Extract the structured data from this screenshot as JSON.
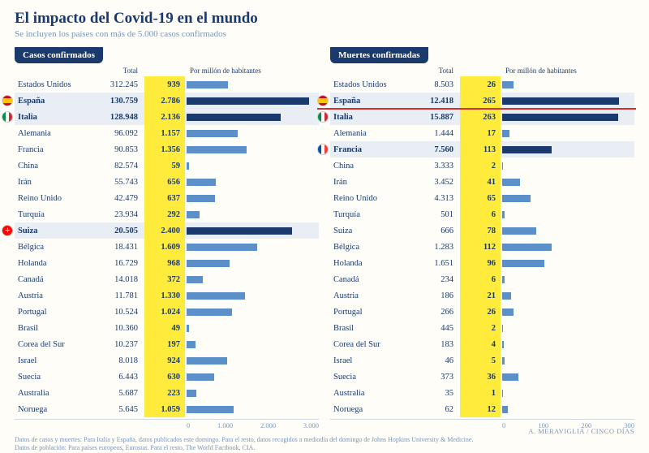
{
  "title": "El impacto del Covid-19 en el mundo",
  "subtitle": "Se incluyen los países con más de 5.000 casos confirmados",
  "col_total": "Total",
  "col_permil": "Por millón de habitantes",
  "panels": [
    {
      "header": "Casos confirmados",
      "max_bar": 3000,
      "axis_ticks": [
        "0",
        "1.000",
        "2.000",
        "3.000"
      ],
      "redline_after": null,
      "rows": [
        {
          "country": "Estados Unidos",
          "total": "312.245",
          "permil": "939",
          "v": 939,
          "hl": false,
          "flag": null
        },
        {
          "country": "España",
          "total": "130.759",
          "permil": "2.786",
          "v": 2786,
          "hl": true,
          "flag": "es"
        },
        {
          "country": "Italia",
          "total": "128.948",
          "permil": "2.136",
          "v": 2136,
          "hl": true,
          "flag": "it"
        },
        {
          "country": "Alemania",
          "total": "96.092",
          "permil": "1.157",
          "v": 1157,
          "hl": false,
          "flag": null
        },
        {
          "country": "Francia",
          "total": "90.853",
          "permil": "1.356",
          "v": 1356,
          "hl": false,
          "flag": null
        },
        {
          "country": "China",
          "total": "82.574",
          "permil": "59",
          "v": 59,
          "hl": false,
          "flag": null
        },
        {
          "country": "Irán",
          "total": "55.743",
          "permil": "656",
          "v": 656,
          "hl": false,
          "flag": null
        },
        {
          "country": "Reino Unido",
          "total": "42.479",
          "permil": "637",
          "v": 637,
          "hl": false,
          "flag": null
        },
        {
          "country": "Turquía",
          "total": "23.934",
          "permil": "292",
          "v": 292,
          "hl": false,
          "flag": null
        },
        {
          "country": "Suiza",
          "total": "20.505",
          "permil": "2.400",
          "v": 2400,
          "hl": true,
          "flag": "ch"
        },
        {
          "country": "Bélgica",
          "total": "18.431",
          "permil": "1.609",
          "v": 1609,
          "hl": false,
          "flag": null
        },
        {
          "country": "Holanda",
          "total": "16.729",
          "permil": "968",
          "v": 968,
          "hl": false,
          "flag": null
        },
        {
          "country": "Canadá",
          "total": "14.018",
          "permil": "372",
          "v": 372,
          "hl": false,
          "flag": null
        },
        {
          "country": "Austria",
          "total": "11.781",
          "permil": "1.330",
          "v": 1330,
          "hl": false,
          "flag": null
        },
        {
          "country": "Portugal",
          "total": "10.524",
          "permil": "1.024",
          "v": 1024,
          "hl": false,
          "flag": null
        },
        {
          "country": "Brasil",
          "total": "10.360",
          "permil": "49",
          "v": 49,
          "hl": false,
          "flag": null
        },
        {
          "country": "Corea del Sur",
          "total": "10.237",
          "permil": "197",
          "v": 197,
          "hl": false,
          "flag": null
        },
        {
          "country": "Israel",
          "total": "8.018",
          "permil": "924",
          "v": 924,
          "hl": false,
          "flag": null
        },
        {
          "country": "Suecia",
          "total": "6.443",
          "permil": "630",
          "v": 630,
          "hl": false,
          "flag": null
        },
        {
          "country": "Australia",
          "total": "5.687",
          "permil": "223",
          "v": 223,
          "hl": false,
          "flag": null
        },
        {
          "country": "Noruega",
          "total": "5.645",
          "permil": "1.059",
          "v": 1059,
          "hl": false,
          "flag": null
        }
      ]
    },
    {
      "header": "Muertes confirmadas",
      "max_bar": 300,
      "axis_ticks": [
        "0",
        "100",
        "200",
        "300"
      ],
      "redline_after": 1,
      "rows": [
        {
          "country": "Estados Unidos",
          "total": "8.503",
          "permil": "26",
          "v": 26,
          "hl": false,
          "flag": null
        },
        {
          "country": "España",
          "total": "12.418",
          "permil": "265",
          "v": 265,
          "hl": true,
          "flag": "es"
        },
        {
          "country": "Italia",
          "total": "15.887",
          "permil": "263",
          "v": 263,
          "hl": true,
          "flag": "it"
        },
        {
          "country": "Alemania",
          "total": "1.444",
          "permil": "17",
          "v": 17,
          "hl": false,
          "flag": null
        },
        {
          "country": "Francia",
          "total": "7.560",
          "permil": "113",
          "v": 113,
          "hl": true,
          "flag": "fr"
        },
        {
          "country": "China",
          "total": "3.333",
          "permil": "2",
          "v": 2,
          "hl": false,
          "flag": null
        },
        {
          "country": "Irán",
          "total": "3.452",
          "permil": "41",
          "v": 41,
          "hl": false,
          "flag": null
        },
        {
          "country": "Reino Unido",
          "total": "4.313",
          "permil": "65",
          "v": 65,
          "hl": false,
          "flag": null
        },
        {
          "country": "Turquía",
          "total": "501",
          "permil": "6",
          "v": 6,
          "hl": false,
          "flag": null
        },
        {
          "country": "Suiza",
          "total": "666",
          "permil": "78",
          "v": 78,
          "hl": false,
          "flag": null
        },
        {
          "country": "Bélgica",
          "total": "1.283",
          "permil": "112",
          "v": 112,
          "hl": false,
          "flag": null
        },
        {
          "country": "Holanda",
          "total": "1.651",
          "permil": "96",
          "v": 96,
          "hl": false,
          "flag": null
        },
        {
          "country": "Canadá",
          "total": "234",
          "permil": "6",
          "v": 6,
          "hl": false,
          "flag": null
        },
        {
          "country": "Austria",
          "total": "186",
          "permil": "21",
          "v": 21,
          "hl": false,
          "flag": null
        },
        {
          "country": "Portugal",
          "total": "266",
          "permil": "26",
          "v": 26,
          "hl": false,
          "flag": null
        },
        {
          "country": "Brasil",
          "total": "445",
          "permil": "2",
          "v": 2,
          "hl": false,
          "flag": null
        },
        {
          "country": "Corea del Sur",
          "total": "183",
          "permil": "4",
          "v": 4,
          "hl": false,
          "flag": null
        },
        {
          "country": "Israel",
          "total": "46",
          "permil": "5",
          "v": 5,
          "hl": false,
          "flag": null
        },
        {
          "country": "Suecia",
          "total": "373",
          "permil": "36",
          "v": 36,
          "hl": false,
          "flag": null
        },
        {
          "country": "Australia",
          "total": "35",
          "permil": "1",
          "v": 1,
          "hl": false,
          "flag": null
        },
        {
          "country": "Noruega",
          "total": "62",
          "permil": "12",
          "v": 12,
          "hl": false,
          "flag": null
        }
      ]
    }
  ],
  "footer_line1": "Datos de casos y muertes: Para Italia y España, datos publicados este domingo. Para el resto, datos recogidos a mediodía del domingo de Johns Hopkins University & Medicine.",
  "footer_line2": "Datos de población: Para países europeos, Eurostat. Para el resto, The World Factbook, CIA.",
  "credit": "A. MERAVIGLIA / CINCO DÍAS",
  "colors": {
    "title": "#1a3a6e",
    "subtitle": "#7a95b8",
    "bg": "#fefdf8",
    "header_bg": "#1a3a6e",
    "highlight_row": "#e8eef3",
    "permil_bg": "#ffeb3b",
    "bar": "#5a8fc7",
    "bar_hl": "#1a3a6e",
    "redline": "#d32f2f"
  }
}
